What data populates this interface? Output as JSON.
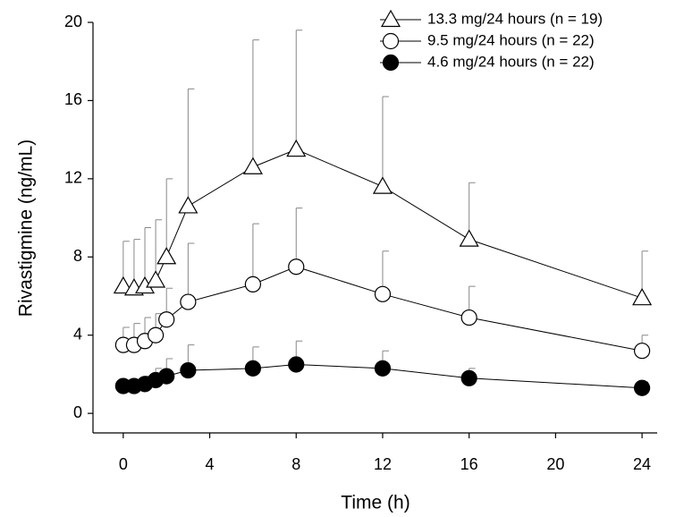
{
  "chart_data": {
    "type": "line",
    "xlabel": "Time (h)",
    "ylabel": "Rivastigmine (ng/mL)",
    "x": [
      0,
      0.5,
      1,
      1.5,
      2,
      3,
      6,
      8,
      12,
      16,
      24
    ],
    "series": [
      {
        "name": "13.3 mg/24 hours (n = 19)",
        "color": "#000000",
        "marker": "triangle",
        "values": [
          6.5,
          6.4,
          6.5,
          6.8,
          8.0,
          10.6,
          12.6,
          13.5,
          11.6,
          8.9,
          5.9
        ],
        "errors": [
          2.3,
          2.5,
          3.0,
          3.1,
          4.0,
          6.0,
          6.5,
          6.1,
          4.6,
          2.9,
          2.4
        ]
      },
      {
        "name": "9.5 mg/24 hours (n = 22)",
        "color": "#000000",
        "marker": "open-circle",
        "values": [
          3.5,
          3.5,
          3.7,
          4.0,
          4.8,
          5.7,
          6.6,
          7.5,
          6.1,
          4.9,
          3.2
        ],
        "errors": [
          0.9,
          1.1,
          1.2,
          1.1,
          1.6,
          3.0,
          3.1,
          3.0,
          2.2,
          1.6,
          0.8
        ]
      },
      {
        "name": "4.6 mg/24 hours (n = 22)",
        "color": "#000000",
        "marker": "filled-circle",
        "values": [
          1.4,
          1.4,
          1.5,
          1.7,
          1.9,
          2.2,
          2.3,
          2.5,
          2.3,
          1.8,
          1.3
        ],
        "errors": [
          0.3,
          0.3,
          0.4,
          0.6,
          0.9,
          1.3,
          1.1,
          1.2,
          0.9,
          0.5,
          0.3
        ]
      }
    ],
    "xlim": [
      -1.4,
      24.7
    ],
    "ylim": [
      -1,
      20
    ],
    "xticks": [
      0,
      4,
      8,
      12,
      16,
      20,
      24
    ],
    "yticks": [
      0,
      4,
      8,
      12,
      16,
      20
    ],
    "legend": "upper right"
  }
}
